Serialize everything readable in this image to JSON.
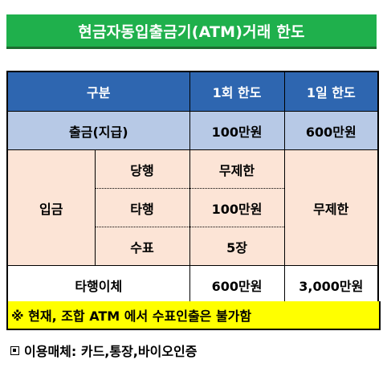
{
  "title": "현금자동입출금기(ATM)거래 한도",
  "table": {
    "headers": {
      "category": "구분",
      "per_transaction": "1회 한도",
      "per_day": "1일 한도"
    },
    "withdrawal": {
      "label": "출금(지급)",
      "per_transaction": "100만원",
      "per_day": "600만원"
    },
    "deposit": {
      "label": "입금",
      "per_day": "무제한",
      "rows": [
        {
          "sub": "당행",
          "per_transaction": "무제한"
        },
        {
          "sub": "타행",
          "per_transaction": "100만원"
        },
        {
          "sub": "수표",
          "per_transaction": "5장"
        }
      ]
    },
    "transfer": {
      "label": "타행이체",
      "per_transaction": "600만원",
      "per_day": "3,000만원"
    }
  },
  "note": "※ 현재, 조합 ATM 에서 수표인출은 불가함",
  "media": {
    "icon": "square-bullet-icon",
    "text": "이용매체: 카드,통장,바이오인증"
  }
}
